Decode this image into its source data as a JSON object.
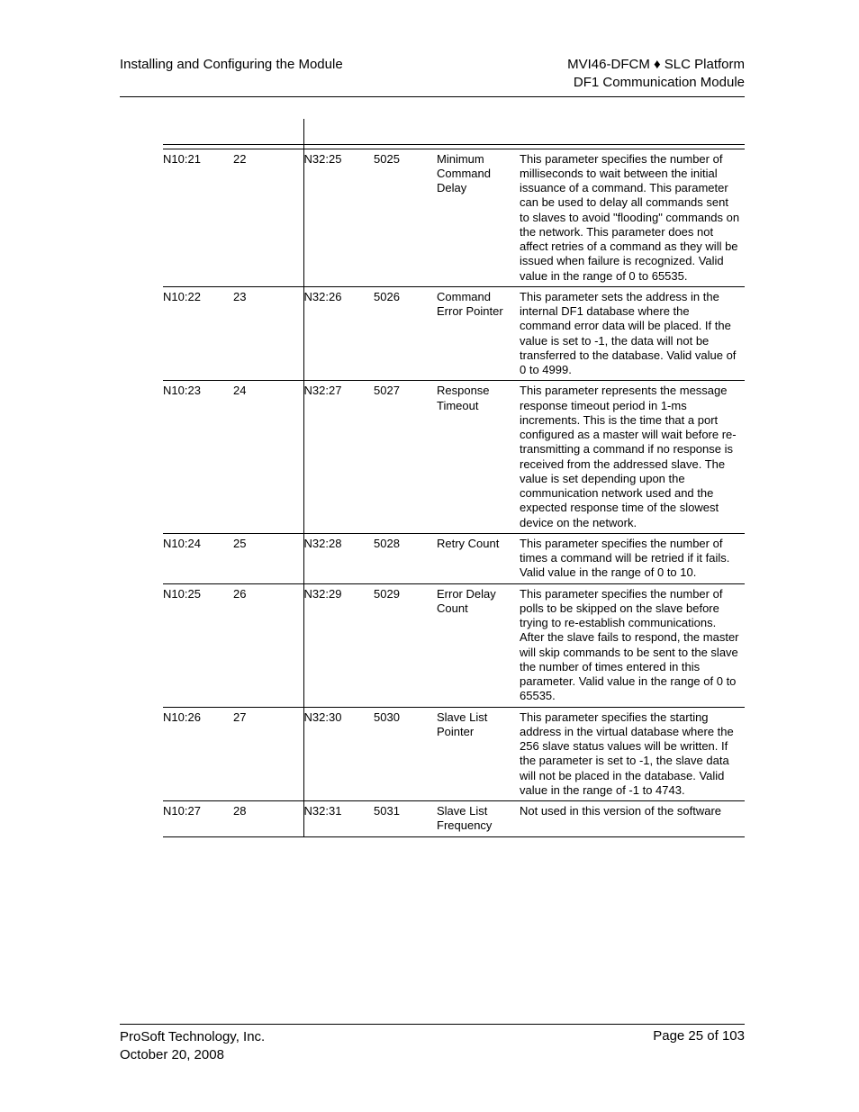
{
  "header": {
    "left": "Installing and Configuring the Module",
    "right_line1": "MVI46-DFCM ♦ SLC Platform",
    "right_line2": "DF1 Communication Module"
  },
  "table": {
    "rows": [
      {
        "c1": "N10:21",
        "c2": "22",
        "c3": "N32:25",
        "c4": "5025",
        "c5": "Minimum Command Delay",
        "c6": "This parameter specifies the number of milliseconds to wait between the initial issuance of a command. This parameter can be used to delay all commands sent to slaves to avoid \"flooding\" commands on the network. This parameter does not affect retries of a command as they will be issued when failure is recognized. Valid value in the range of 0 to 65535."
      },
      {
        "c1": "N10:22",
        "c2": "23",
        "c3": "N32:26",
        "c4": "5026",
        "c5": "Command Error Pointer",
        "c6": "This parameter sets the address in the internal DF1 database where the command error data will be placed. If the value is set to -1, the data will not be transferred to the database. Valid value of 0 to 4999."
      },
      {
        "c1": "N10:23",
        "c2": "24",
        "c3": "N32:27",
        "c4": "5027",
        "c5": "Response Timeout",
        "c6": "This parameter represents the message response timeout period in 1-ms increments. This is the time that a port configured as a master will wait before re-transmitting a command if no response is received from the addressed slave. The value is set depending upon the communication network used and the expected response time of the slowest device on the network."
      },
      {
        "c1": "N10:24",
        "c2": "25",
        "c3": "N32:28",
        "c4": "5028",
        "c5": "Retry Count",
        "c6": "This parameter specifies the number of times a command will be retried if it fails. Valid value in the range of 0 to 10."
      },
      {
        "c1": "N10:25",
        "c2": "26",
        "c3": "N32:29",
        "c4": "5029",
        "c5": "Error Delay Count",
        "c6": "This parameter specifies the number of polls to be skipped on the slave before trying to re-establish communications. After the slave fails to respond, the master will skip commands to be sent to the slave the number of times entered in this parameter. Valid value in the range of 0 to 65535."
      },
      {
        "c1": "N10:26",
        "c2": "27",
        "c3": "N32:30",
        "c4": "5030",
        "c5": "Slave List Pointer",
        "c6": "This parameter specifies the starting address in the virtual database where the 256 slave status values will be written. If the parameter is set to -1, the slave data will not be placed in the database. Valid value in the range of -1 to 4743."
      },
      {
        "c1": "N10:27",
        "c2": "28",
        "c3": "N32:31",
        "c4": "5031",
        "c5": "Slave List Frequency",
        "c6": "Not used in this version of the software"
      }
    ]
  },
  "footer": {
    "company": "ProSoft Technology, Inc.",
    "date": "October 20, 2008",
    "page": "Page 25 of 103"
  }
}
